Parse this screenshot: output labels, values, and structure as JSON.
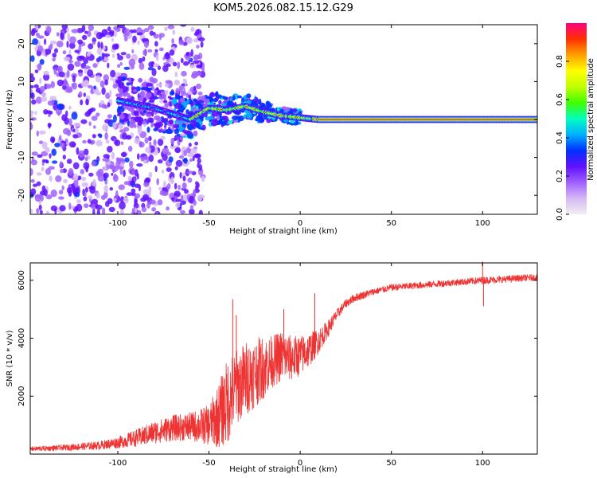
{
  "title": "KOM5.2026.082.15.12.G29",
  "chart_data": [
    {
      "type": "heatmap",
      "name": "spectrogram",
      "xlabel": "Height of straight line (km)",
      "ylabel": "Frequency (Hz)",
      "xlim": [
        -148,
        130
      ],
      "ylim": [
        -25,
        25
      ],
      "xticks": [
        {
          "v": -100,
          "t": "-100"
        },
        {
          "v": -50,
          "t": "-50"
        },
        {
          "v": 0,
          "t": "0"
        },
        {
          "v": 50,
          "t": "50"
        },
        {
          "v": 100,
          "t": "100"
        }
      ],
      "yticks": [
        {
          "v": -20,
          "t": "-20"
        },
        {
          "v": -10,
          "t": "-10"
        },
        {
          "v": 0,
          "t": "0"
        },
        {
          "v": 10,
          "t": "10"
        },
        {
          "v": 20,
          "t": "20"
        }
      ],
      "colorbar": {
        "label": "Normalized spectral amplitude",
        "range": [
          0,
          1
        ],
        "ticks": [
          {
            "v": 0.0,
            "t": "0.0"
          },
          {
            "v": 0.2,
            "t": "0.2"
          },
          {
            "v": 0.4,
            "t": "0.4"
          },
          {
            "v": 0.6,
            "t": "0.6"
          },
          {
            "v": 0.8,
            "t": "0.8"
          }
        ],
        "colors": [
          "#f0f0f0",
          "#d6b8f5",
          "#a060ff",
          "#6010ff",
          "#0030ff",
          "#00b0ff",
          "#00ffc0",
          "#40ff00",
          "#c0ff00",
          "#ffff00",
          "#ffa000",
          "#ff3000",
          "#ff0080"
        ]
      },
      "ridge": {
        "x": [
          -100,
          -90,
          -80,
          -70,
          -60,
          -50,
          -40,
          -30,
          -20,
          -10,
          0,
          10,
          20,
          130
        ],
        "freq": [
          5,
          4,
          3,
          1.5,
          0,
          3,
          2.5,
          3.5,
          2,
          1,
          0.5,
          0,
          0,
          0
        ]
      }
    },
    {
      "type": "line",
      "name": "snr",
      "xlabel": "Height of straight line (km)",
      "ylabel": "SNR (10 * v/v)",
      "xlim": [
        -148,
        130
      ],
      "ylim": [
        0,
        6600
      ],
      "color": "#ee3333",
      "xticks": [
        {
          "v": -100,
          "t": "-100"
        },
        {
          "v": -50,
          "t": "-50"
        },
        {
          "v": 0,
          "t": "0"
        },
        {
          "v": 50,
          "t": "50"
        },
        {
          "v": 100,
          "t": "100"
        }
      ],
      "yticks": [
        {
          "v": 2000,
          "t": "2000"
        },
        {
          "v": 4000,
          "t": "4000"
        },
        {
          "v": 6000,
          "t": "6000"
        }
      ],
      "envelope": {
        "x": [
          -148,
          -130,
          -110,
          -100,
          -90,
          -80,
          -70,
          -60,
          -50,
          -45,
          -40,
          -35,
          -30,
          -25,
          -20,
          -15,
          -10,
          -5,
          0,
          5,
          10,
          15,
          20,
          25,
          30,
          40,
          50,
          60,
          70,
          80,
          90,
          100,
          110,
          120,
          130
        ],
        "mean": [
          180,
          220,
          300,
          400,
          550,
          750,
          900,
          950,
          1000,
          1300,
          1800,
          2300,
          2600,
          2800,
          3000,
          3200,
          3400,
          3300,
          3400,
          3600,
          3900,
          4300,
          4800,
          5200,
          5400,
          5600,
          5750,
          5800,
          5850,
          5900,
          5950,
          6000,
          6030,
          6070,
          6100
        ],
        "noise": [
          80,
          100,
          150,
          200,
          300,
          400,
          450,
          500,
          700,
          1100,
          1500,
          1300,
          1300,
          1200,
          1100,
          900,
          900,
          800,
          700,
          600,
          450,
          300,
          200,
          150,
          150,
          120,
          120,
          120,
          120,
          120,
          120,
          130,
          120,
          120,
          120
        ]
      },
      "spikes": [
        {
          "x": -37,
          "y": 5350
        },
        {
          "x": -35,
          "y": 4800
        },
        {
          "x": -9,
          "y": 5000
        },
        {
          "x": 8,
          "y": 5550
        },
        {
          "x": 100,
          "y": 6650
        },
        {
          "x": 100.5,
          "y": 5100
        }
      ]
    }
  ]
}
